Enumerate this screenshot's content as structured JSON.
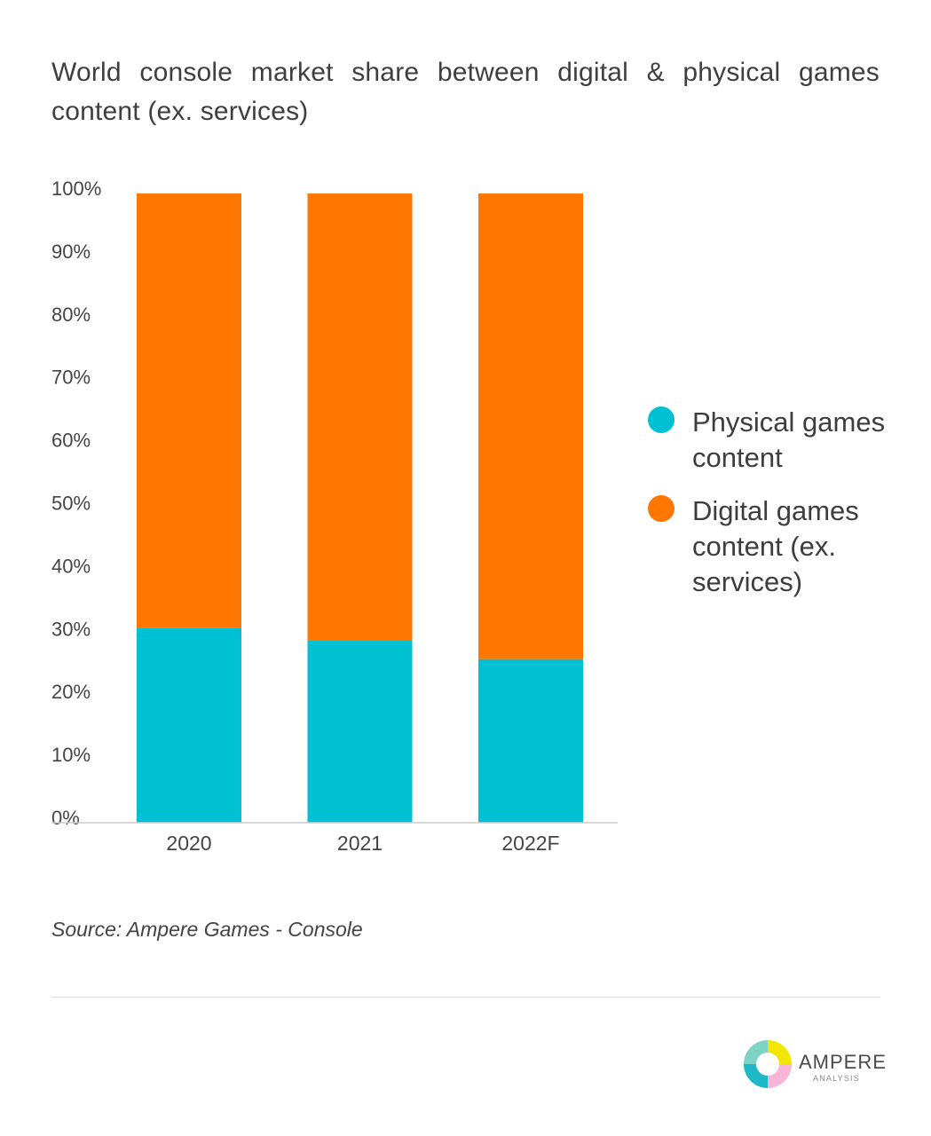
{
  "title": "World console market share between digital & physical games content (ex. services)",
  "source": "Source: Ampere Games - Console",
  "logo": {
    "name": "AMPERE",
    "subtitle": "ANALYSIS"
  },
  "colors": {
    "physical": "#00c0d4",
    "digital": "#ff7700",
    "axis": "#cccccc"
  },
  "legend": {
    "placement": "right",
    "items": [
      {
        "label": "Physical games content",
        "color": "#00c0d4",
        "icon": "circle-marker"
      },
      {
        "label": "Digital games content (ex. services)",
        "color": "#ff7700",
        "icon": "circle-marker"
      }
    ]
  },
  "chart_data": {
    "type": "bar",
    "stacked": true,
    "categories": [
      "2020",
      "2021",
      "2022F"
    ],
    "series": [
      {
        "name": "Physical games content",
        "color": "#00c0d4",
        "values": [
          31,
          29,
          26
        ]
      },
      {
        "name": "Digital games content (ex. services)",
        "color": "#ff7700",
        "values": [
          69,
          71,
          74
        ]
      }
    ],
    "ylim": [
      0,
      100
    ],
    "yticks": [
      "0%",
      "10%",
      "20%",
      "30%",
      "40%",
      "50%",
      "60%",
      "70%",
      "80%",
      "90%",
      "100%"
    ],
    "xlabel": "",
    "ylabel": "",
    "grid": false
  }
}
